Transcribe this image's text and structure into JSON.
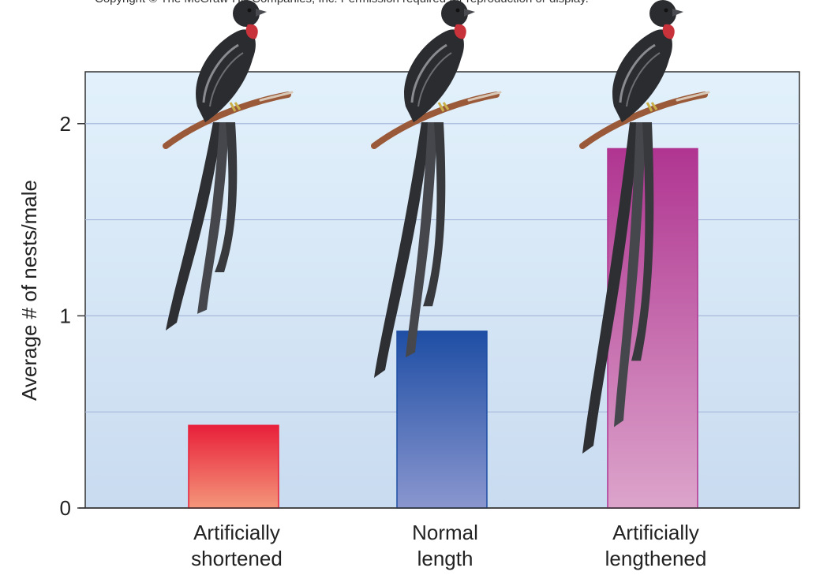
{
  "copyright": "Copyright © The McGraw-Hill Companies, Inc. Permission required for reproduction or display.",
  "chart_data": {
    "type": "bar",
    "categories": [
      [
        "Artificially",
        "shortened"
      ],
      [
        "Normal",
        "length"
      ],
      [
        "Artificially",
        "lengthened"
      ]
    ],
    "values": [
      0.43,
      0.92,
      1.87
    ],
    "ylabel": "Average # of nests/male",
    "xlabel": "",
    "ylim": [
      0,
      2.27
    ],
    "yticks": [
      "0",
      "1",
      "2"
    ],
    "ytick_values": [
      0,
      1,
      2
    ],
    "gridlines": [
      0.5,
      1,
      1.5,
      2
    ],
    "grid": true,
    "colors": {
      "bar_shortened_top": "#e8203a",
      "bar_shortened_bottom": "#f4967a",
      "bar_normal_top": "#1e4ea4",
      "bar_normal_bottom": "#8a96cf",
      "bar_lengthened_top": "#b03591",
      "bar_lengthened_bottom": "#dca4cb",
      "plot_bg_top": "#e2f1fb",
      "plot_bg_bottom": "#c9dbf0",
      "gridline": "#a9b9dc"
    },
    "tail_lengths": [
      0.35,
      0.6,
      1.0
    ]
  }
}
